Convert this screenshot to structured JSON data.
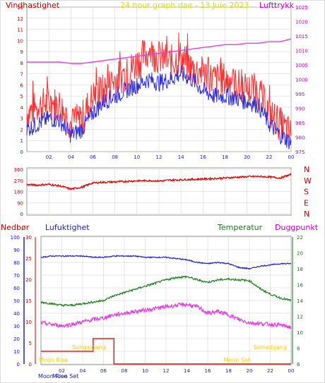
{
  "colors": {
    "frame": "#dddddd",
    "grid": "#cfcfcf",
    "wind_gust": "#ff3030",
    "wind_avg": "#3030e0",
    "pressure": "#e040e0",
    "direction": "#e00000",
    "humidity": "#2020d0",
    "temperature": "#208020",
    "dewpoint": "#e040e0",
    "rain": "#e02020",
    "moon_phase": "#ffcc00",
    "time_axis": "#2020b0"
  },
  "top_panel": {
    "title": "24 hour graph dae - 13 Juie 2023",
    "left_label": "Vindhastighet",
    "right_label": "Lufttrykk"
  },
  "direction_panel": {
    "compass_labels": [
      "N",
      "W",
      "S",
      "E",
      "N"
    ]
  },
  "bottom_panel": {
    "label_rain": "Nedbør",
    "label_humidity": "Lufuktighet",
    "label_temperature": "Temperatur",
    "label_dewpoint": "Duggpunkt",
    "moon_labels": [
      {
        "text": "Moon Rise",
        "hour": 1.2
      },
      {
        "text": "Soloppgang",
        "hour": 4.6
      },
      {
        "text": "Moon Set",
        "hour": 18.8
      },
      {
        "text": "Solnedgang",
        "hour": 22.0
      }
    ],
    "bottom_labels": {
      "moon_rise": "Moon Rise",
      "moon_set": "Moon Set"
    }
  },
  "chart_data": [
    {
      "type": "line",
      "title": "24 hour graph dae - 13 Juie 2023",
      "ylabel_left": "Vindhastighet",
      "ylabel_right": "Lufttrykk",
      "x_ticks": [
        "02",
        "04",
        "06",
        "08",
        "10",
        "12",
        "14",
        "16",
        "18",
        "20",
        "22",
        "00"
      ],
      "ylim_left": [
        0,
        13
      ],
      "y_ticks_left": [
        0,
        1,
        2,
        3,
        4,
        5,
        6,
        7,
        8,
        9,
        10,
        11,
        12,
        13
      ],
      "ylim_right": [
        975,
        1025
      ],
      "y_ticks_right": [
        975,
        980,
        985,
        990,
        995,
        1000,
        1005,
        1010,
        1015,
        1020,
        1025
      ],
      "x_hours": [
        0,
        1,
        2,
        3,
        4,
        5,
        6,
        7,
        8,
        9,
        10,
        11,
        12,
        13,
        14,
        15,
        16,
        17,
        18,
        19,
        20,
        21,
        22,
        23,
        24
      ],
      "series": [
        {
          "name": "Vindhastighet",
          "axis": "left",
          "values": [
            3.5,
            4,
            4.5,
            4.2,
            2.5,
            3,
            5,
            5.5,
            6.5,
            7,
            8,
            9,
            8.5,
            8,
            8.5,
            7.5,
            7,
            6.5,
            6.5,
            6,
            5.5,
            5.5,
            3.5,
            2.5,
            1.5
          ]
        },
        {
          "name": "Vindkast",
          "axis": "left",
          "values": [
            2,
            2.5,
            3,
            2.8,
            1.5,
            2,
            3.5,
            4.5,
            5,
            5.5,
            6,
            6.5,
            6.2,
            6.5,
            7,
            6.5,
            5.5,
            5,
            5,
            4.8,
            4.5,
            4.2,
            2.5,
            1.5,
            0.8
          ]
        },
        {
          "name": "Lufttrykk",
          "axis": "right",
          "values": [
            1006,
            1006,
            1006,
            1006,
            1005.5,
            1005.5,
            1006,
            1006.5,
            1007,
            1007.5,
            1008,
            1008.5,
            1009,
            1009.5,
            1010,
            1010.5,
            1011,
            1011.5,
            1012,
            1012,
            1012.5,
            1012.5,
            1013,
            1013,
            1014
          ]
        }
      ]
    },
    {
      "type": "line",
      "title": "",
      "x_ticks": [
        "02",
        "04",
        "06",
        "08",
        "10",
        "12",
        "14",
        "16",
        "18",
        "20",
        "22",
        "00"
      ],
      "ylim": [
        0,
        360
      ],
      "y_ticks": [
        0,
        90,
        180,
        270,
        360
      ],
      "x_hours": [
        0,
        1,
        2,
        3,
        4,
        5,
        6,
        7,
        8,
        9,
        10,
        11,
        12,
        13,
        14,
        15,
        16,
        17,
        18,
        19,
        20,
        21,
        22,
        23,
        24
      ],
      "series": [
        {
          "name": "Vindretning",
          "values": [
            235,
            232,
            238,
            225,
            200,
            215,
            250,
            255,
            258,
            262,
            266,
            268,
            265,
            272,
            275,
            278,
            282,
            285,
            290,
            295,
            300,
            302,
            298,
            290,
            318
          ]
        }
      ]
    },
    {
      "type": "line",
      "title": "",
      "x_ticks": [
        "02",
        "04",
        "06",
        "08",
        "10",
        "12",
        "14",
        "16",
        "18",
        "20",
        "22",
        "00"
      ],
      "axes": {
        "humidity": {
          "label": "Lufuktighet",
          "ylim": [
            0,
            100
          ],
          "ticks": [
            0,
            10,
            20,
            30,
            40,
            50,
            60,
            70,
            80,
            90,
            100
          ]
        },
        "rain": {
          "label": "Nedbør",
          "ylim": [
            0,
            30
          ],
          "ticks": [
            0,
            5,
            10,
            15,
            20,
            25,
            30
          ]
        },
        "temperature": {
          "label": "Temperatur",
          "ylim": [
            6,
            22
          ],
          "ticks": [
            6,
            8,
            10,
            12,
            14,
            16,
            18,
            20,
            22
          ]
        }
      },
      "x_hours": [
        0,
        1,
        2,
        3,
        4,
        5,
        6,
        7,
        8,
        9,
        10,
        11,
        12,
        13,
        14,
        15,
        16,
        17,
        18,
        19,
        20,
        21,
        22,
        23,
        24
      ],
      "series": [
        {
          "name": "Lufuktighet",
          "axis": "humidity",
          "values": [
            84,
            85,
            85,
            85,
            85,
            84,
            84,
            85,
            85,
            85,
            84,
            84,
            84,
            83,
            82,
            80,
            79,
            80,
            79,
            76,
            75,
            77,
            78,
            79,
            79
          ]
        },
        {
          "name": "Temperatur",
          "axis": "temperature",
          "values": [
            13.8,
            13.6,
            13.4,
            13.4,
            13.6,
            13.8,
            14.0,
            14.6,
            15.0,
            15.4,
            15.8,
            16.2,
            16.6,
            16.9,
            17.0,
            16.6,
            16.3,
            16.6,
            16.7,
            16.6,
            16.5,
            15.5,
            14.8,
            14.3,
            14.0
          ]
        },
        {
          "name": "Duggpunkt",
          "axis": "temperature",
          "values": [
            11.2,
            11.0,
            10.8,
            11.0,
            11.3,
            11.6,
            11.8,
            12.2,
            12.4,
            12.6,
            12.8,
            13.0,
            13.2,
            13.4,
            13.5,
            13.2,
            12.4,
            12.6,
            12.2,
            11.6,
            11.2,
            11.1,
            11.0,
            10.9,
            10.6
          ]
        },
        {
          "name": "Nedbør",
          "axis": "rain",
          "values": [
            3,
            3,
            3,
            3,
            3,
            6,
            6,
            0,
            0,
            0,
            0,
            0,
            0,
            0,
            0,
            0,
            0,
            0,
            0,
            0,
            0,
            0,
            0,
            0,
            0
          ]
        }
      ]
    }
  ]
}
